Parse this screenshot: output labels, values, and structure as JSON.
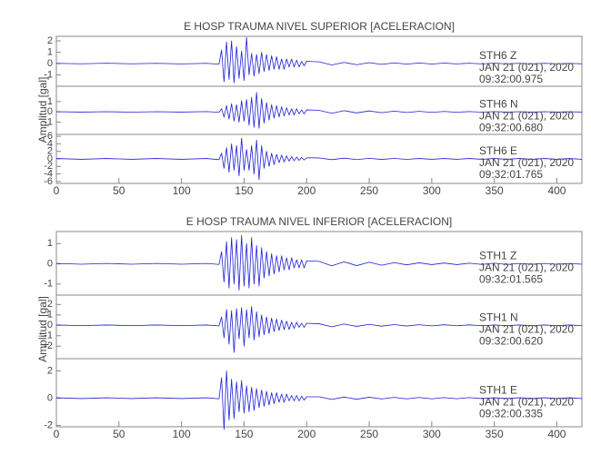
{
  "chart_data": [
    {
      "type": "line",
      "title": "E HOSP TRAUMA NIVEL SUPERIOR [ACELERACION]",
      "ylabel": "Amplitud [gal]",
      "xlim": [
        0,
        420
      ],
      "xticks": [
        0,
        50,
        100,
        150,
        200,
        250,
        300,
        350,
        400
      ],
      "x": [
        0,
        20,
        40,
        60,
        80,
        100,
        120,
        130,
        132,
        134,
        136,
        138,
        140,
        142,
        144,
        146,
        148,
        150,
        152,
        154,
        156,
        158,
        160,
        162,
        164,
        166,
        168,
        170,
        172,
        174,
        176,
        178,
        180,
        182,
        184,
        186,
        188,
        190,
        192,
        194,
        196,
        198,
        200,
        210,
        220,
        230,
        240,
        250,
        260,
        270,
        280,
        290,
        300,
        310,
        320,
        330,
        340,
        350,
        360,
        370,
        380,
        390,
        400,
        410,
        420
      ],
      "series": [
        {
          "color": "#1f1fd6",
          "ylim": [
            -2,
            2.4
          ],
          "yticks": [
            -1,
            0,
            1,
            2
          ],
          "annotation": [
            "STH6   Z",
            "JAN 21 (021), 2020",
            "09:32:00.975"
          ],
          "values": [
            0.02,
            -0.02,
            0.03,
            -0.02,
            0.02,
            -0.03,
            0.02,
            -0.05,
            1.2,
            -1.6,
            1.9,
            -1.4,
            2.0,
            -1.7,
            1.5,
            -1.3,
            1.1,
            -1.5,
            2.3,
            -1.0,
            0.9,
            -1.1,
            0.8,
            -0.9,
            1.0,
            -0.7,
            0.8,
            -0.6,
            0.7,
            -0.5,
            0.6,
            -0.5,
            0.4,
            -0.5,
            0.4,
            -0.3,
            0.4,
            -0.3,
            0.3,
            -0.3,
            0.2,
            -0.2,
            0.2,
            0.15,
            -0.12,
            0.1,
            -0.1,
            0.08,
            -0.07,
            0.06,
            -0.05,
            0.05,
            -0.04,
            0.04,
            -0.03,
            0.03,
            -0.03,
            0.03,
            -0.02,
            0.02,
            -0.02,
            0.02,
            -0.02,
            0.02,
            -0.02
          ]
        },
        {
          "color": "#1f1fd6",
          "ylim": [
            -2.2,
            2.5
          ],
          "yticks": [
            -1,
            0,
            1
          ],
          "annotation": [
            "STH6   N",
            "JAN 21 (021), 2020",
            "09:32:00.680"
          ],
          "values": [
            0.02,
            -0.02,
            0.02,
            -0.03,
            0.02,
            -0.02,
            0.03,
            -0.04,
            0.3,
            -0.5,
            0.6,
            -0.7,
            0.8,
            -0.9,
            0.7,
            -1.0,
            1.1,
            -0.9,
            1.2,
            -1.3,
            1.4,
            -1.5,
            1.9,
            -1.6,
            1.3,
            -1.1,
            0.9,
            -0.8,
            0.7,
            -0.6,
            0.6,
            -0.5,
            0.5,
            -0.4,
            0.4,
            -0.3,
            0.3,
            -0.3,
            0.3,
            -0.2,
            0.2,
            -0.2,
            0.2,
            0.15,
            -0.14,
            0.12,
            -0.1,
            0.09,
            -0.08,
            0.07,
            -0.06,
            0.05,
            -0.05,
            0.04,
            -0.04,
            0.03,
            -0.03,
            0.03,
            -0.02,
            0.02,
            -0.02,
            0.02,
            -0.02,
            0.02,
            -0.02
          ]
        },
        {
          "color": "#1f1fd6",
          "ylim": [
            -6.5,
            6.5
          ],
          "yticks": [
            -6,
            -4,
            -2,
            0,
            2,
            4,
            6
          ],
          "annotation": [
            "STH6   E",
            "JAN 21 (021), 2020",
            "09:32:01.765"
          ],
          "values": [
            0.1,
            -0.1,
            0.1,
            -0.1,
            0.1,
            -0.1,
            0.1,
            -0.2,
            1.5,
            -2.5,
            3.0,
            -3.5,
            4.0,
            -3.0,
            3.5,
            -4.5,
            5.5,
            -3.0,
            2.5,
            -3.0,
            3.5,
            -4.0,
            5.0,
            -5.5,
            3.5,
            -2.5,
            2.0,
            -2.0,
            1.5,
            -1.5,
            1.2,
            -1.0,
            1.0,
            -0.8,
            0.8,
            -0.6,
            0.6,
            -0.5,
            0.5,
            -0.4,
            0.4,
            -0.3,
            0.3,
            0.25,
            -0.2,
            0.2,
            -0.18,
            0.15,
            -0.14,
            0.12,
            -0.12,
            0.1,
            -0.1,
            0.1,
            -0.1,
            0.1,
            -0.1,
            0.1,
            -0.1,
            0.1,
            -0.1,
            0.1,
            -0.1,
            0.1,
            -0.1
          ]
        }
      ]
    },
    {
      "type": "line",
      "title": "E HOSP TRAUMA NIVEL INFERIOR [ACELERACION]",
      "ylabel": "Amplitud [gal]",
      "xlim": [
        0,
        420
      ],
      "xticks": [
        0,
        50,
        100,
        150,
        200,
        250,
        300,
        350,
        400
      ],
      "x": [
        0,
        20,
        40,
        60,
        80,
        100,
        120,
        130,
        132,
        134,
        136,
        138,
        140,
        142,
        144,
        146,
        148,
        150,
        152,
        154,
        156,
        158,
        160,
        162,
        164,
        166,
        168,
        170,
        172,
        174,
        176,
        178,
        180,
        182,
        184,
        186,
        188,
        190,
        192,
        194,
        196,
        198,
        200,
        210,
        220,
        230,
        240,
        250,
        260,
        270,
        280,
        290,
        300,
        310,
        320,
        330,
        340,
        350,
        360,
        370,
        380,
        390,
        400,
        410,
        420
      ],
      "series": [
        {
          "color": "#1f1fd6",
          "ylim": [
            -1.55,
            1.6
          ],
          "yticks": [
            -1,
            0,
            1
          ],
          "annotation": [
            "STH1   Z",
            "JAN 21 (021), 2020",
            "09:32:01.565"
          ],
          "values": [
            0.02,
            -0.02,
            0.02,
            -0.02,
            0.02,
            -0.02,
            0.02,
            -0.03,
            0.6,
            -0.9,
            1.1,
            -1.2,
            1.3,
            -1.0,
            1.2,
            -1.3,
            1.4,
            -1.1,
            1.0,
            -1.2,
            1.3,
            -1.0,
            0.9,
            -1.1,
            0.8,
            -0.7,
            0.6,
            -0.6,
            0.5,
            -0.5,
            0.4,
            -0.4,
            0.4,
            -0.3,
            0.3,
            -0.3,
            0.3,
            -0.2,
            0.2,
            -0.2,
            0.2,
            -0.2,
            0.15,
            0.12,
            -0.1,
            0.1,
            -0.09,
            0.08,
            -0.07,
            0.06,
            -0.05,
            0.05,
            -0.04,
            0.04,
            -0.04,
            0.03,
            -0.03,
            0.03,
            -0.03,
            0.02,
            -0.02,
            0.02,
            -0.02,
            0.02,
            -0.02
          ]
        },
        {
          "color": "#1f1fd6",
          "ylim": [
            -3.2,
            2.9
          ],
          "yticks": [
            -2,
            -1,
            0,
            1,
            2
          ],
          "annotation": [
            "STH1   N",
            "JAN 21 (021), 2020",
            "09:32:00.620"
          ],
          "values": [
            0.03,
            -0.03,
            0.03,
            -0.03,
            0.03,
            -0.03,
            0.03,
            -0.05,
            0.8,
            -1.2,
            1.5,
            -1.8,
            1.4,
            -2.6,
            1.6,
            -1.3,
            1.7,
            -2.0,
            1.5,
            -1.2,
            1.8,
            -1.4,
            1.3,
            -1.1,
            1.0,
            -0.9,
            0.8,
            -0.8,
            0.7,
            -0.6,
            0.6,
            -0.5,
            0.5,
            -0.4,
            0.4,
            -0.4,
            0.3,
            -0.3,
            0.3,
            -0.2,
            0.2,
            -0.2,
            0.2,
            0.15,
            -0.14,
            0.12,
            -0.1,
            0.09,
            -0.08,
            0.07,
            -0.07,
            0.06,
            -0.05,
            0.05,
            -0.04,
            0.04,
            -0.04,
            0.03,
            -0.03,
            0.03,
            -0.03,
            0.03,
            -0.03,
            0.03,
            -0.03
          ]
        },
        {
          "color": "#1f1fd6",
          "ylim": [
            -2.1,
            2.9
          ],
          "yticks": [
            -2,
            0,
            2
          ],
          "annotation": [
            "STH1   E",
            "JAN 21 (021), 2020",
            "09:32:00.335"
          ],
          "values": [
            0.03,
            -0.03,
            0.03,
            -0.03,
            0.03,
            -0.03,
            0.03,
            -0.05,
            1.5,
            -2.3,
            2.0,
            -1.6,
            1.4,
            -1.5,
            1.2,
            -1.0,
            1.3,
            -1.1,
            0.9,
            -1.0,
            0.8,
            -0.9,
            0.7,
            -0.7,
            0.6,
            -0.6,
            0.5,
            -0.5,
            0.4,
            -0.4,
            0.4,
            -0.3,
            0.3,
            -0.3,
            0.3,
            -0.2,
            0.2,
            -0.2,
            0.2,
            -0.2,
            0.15,
            -0.15,
            0.1,
            0.1,
            -0.09,
            0.08,
            -0.08,
            0.07,
            -0.06,
            0.06,
            -0.05,
            0.05,
            -0.05,
            0.04,
            -0.04,
            0.04,
            -0.03,
            0.03,
            -0.03,
            0.03,
            -0.03,
            0.03,
            -0.03,
            0.03,
            -0.03
          ]
        }
      ]
    }
  ]
}
